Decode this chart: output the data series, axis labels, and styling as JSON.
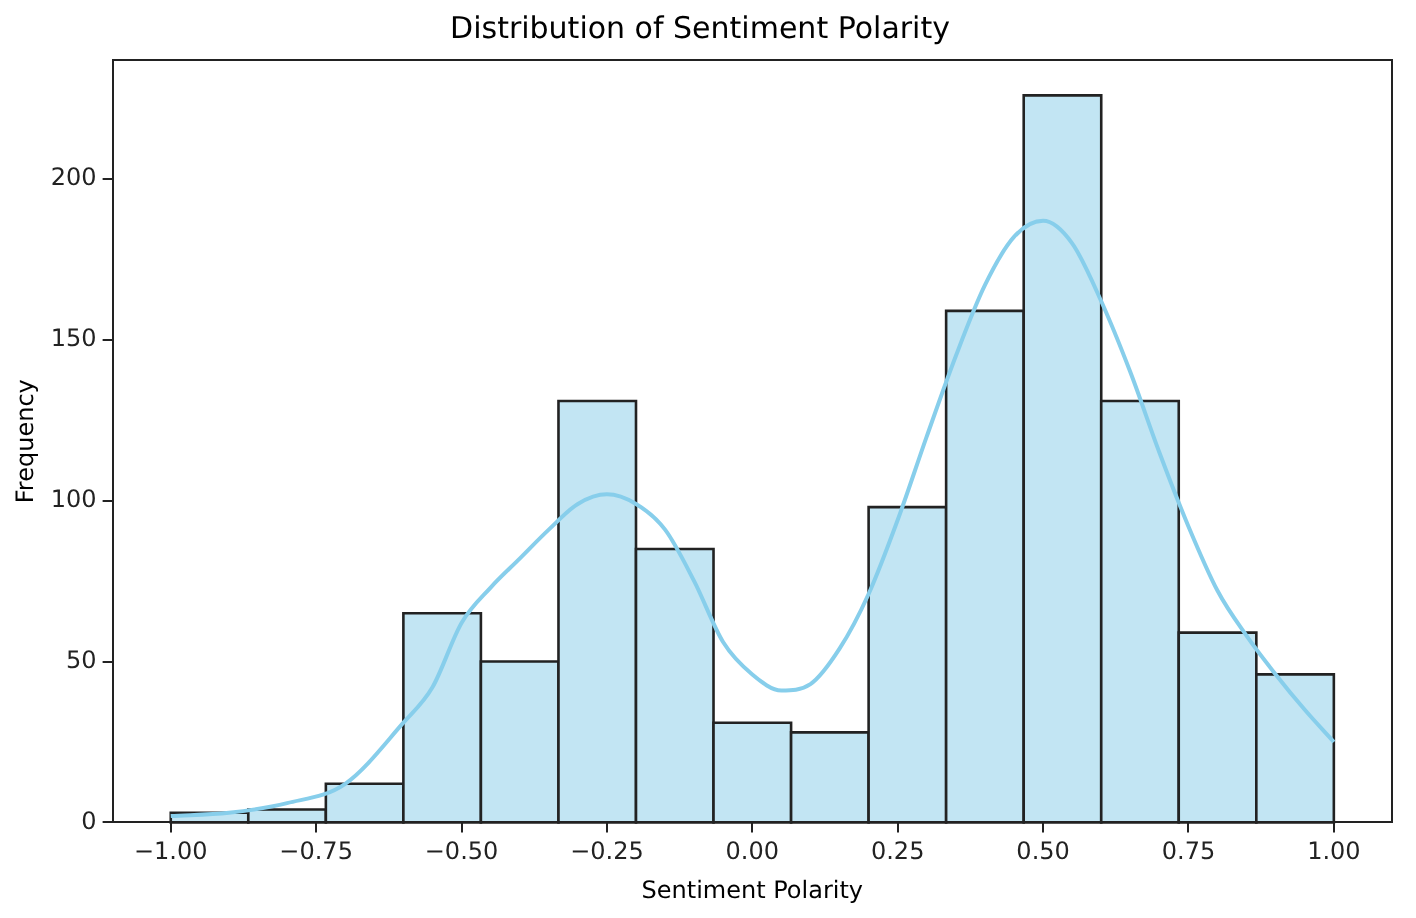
{
  "chart_data": {
    "type": "histogram",
    "title": "Distribution of Sentiment Polarity",
    "xlabel": "Sentiment Polarity",
    "ylabel": "Frequency",
    "bins": [
      -1,
      -0.8667,
      -0.7333,
      -0.6,
      -0.4667,
      -0.3333,
      -0.2,
      -0.0667,
      0.0667,
      0.2,
      0.3333,
      0.4667,
      0.6,
      0.7333,
      0.8667,
      1
    ],
    "values": [
      3,
      4,
      12,
      65,
      50,
      131,
      85,
      31,
      28,
      98,
      159,
      226,
      131,
      59,
      46
    ],
    "color": "#c2e5f3",
    "series": [
      {
        "type": "line",
        "color": "#87ceeb",
        "x": [
          -1,
          -0.9,
          -0.8,
          -0.7,
          -0.6,
          -0.55,
          -0.5,
          -0.45,
          -0.4,
          -0.35,
          -0.3,
          -0.25,
          -0.2,
          -0.15,
          -0.1,
          -0.05,
          0,
          0.05,
          0.1,
          0.15,
          0.2,
          0.25,
          0.3,
          0.35,
          0.4,
          0.45,
          0.5,
          0.55,
          0.6,
          0.65,
          0.7,
          0.75,
          0.8,
          0.85,
          0.9,
          0.95,
          1
        ],
        "values": [
          2,
          3,
          6,
          12,
          31,
          42,
          62,
          73,
          82,
          91,
          99,
          102,
          99,
          91,
          75,
          56,
          46,
          41,
          43,
          54,
          71,
          94,
          120,
          145,
          167,
          182,
          187,
          180,
          162,
          140,
          115,
          92,
          72,
          58,
          46,
          35,
          25
        ]
      }
    ],
    "xlim": [
      -1.1,
      1.1
    ],
    "ylim": [
      0,
      237
    ],
    "xticks": [
      {
        "value": -1,
        "label": "−1.00"
      },
      {
        "value": -0.75,
        "label": "−0.75"
      },
      {
        "value": -0.5,
        "label": "−0.50"
      },
      {
        "value": -0.25,
        "label": "−0.25"
      },
      {
        "value": 0,
        "label": "0.00"
      },
      {
        "value": 0.25,
        "label": "0.25"
      },
      {
        "value": 0.5,
        "label": "0.50"
      },
      {
        "value": 0.75,
        "label": "0.75"
      },
      {
        "value": 1,
        "label": "1.00"
      }
    ],
    "yticks": [
      0,
      50,
      100,
      150,
      200
    ],
    "grid": false,
    "legend": false,
    "marker": "none",
    "line_style": "solid"
  }
}
